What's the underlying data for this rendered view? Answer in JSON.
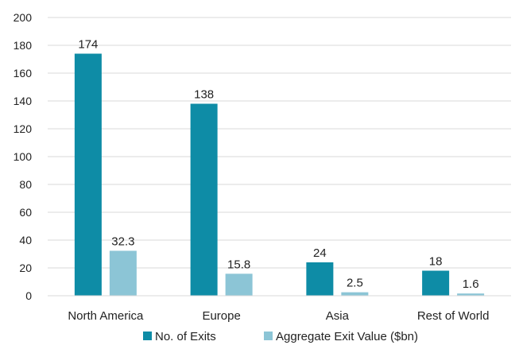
{
  "chart_data": {
    "type": "bar",
    "categories": [
      "North America",
      "Europe",
      "Asia",
      "Rest of World"
    ],
    "series": [
      {
        "name": "No. of Exits",
        "values": [
          174,
          138,
          24,
          18
        ],
        "color": "#0E8CA6"
      },
      {
        "name": "Aggregate Exit Value ($bn)",
        "values": [
          32.3,
          15.8,
          2.5,
          1.6
        ],
        "color": "#8CC5D6"
      }
    ],
    "data_labels": [
      [
        "174",
        "138",
        "24",
        "18"
      ],
      [
        "32.3",
        "15.8",
        "2.5",
        "1.6"
      ]
    ],
    "yticks": [
      "0",
      "20",
      "40",
      "60",
      "80",
      "100",
      "120",
      "140",
      "160",
      "180",
      "200"
    ],
    "ylim": [
      0,
      200
    ],
    "title": "",
    "xlabel": "",
    "ylabel": "",
    "legend_position": "bottom",
    "grid": true,
    "grid_color": "#D9D9D9"
  }
}
